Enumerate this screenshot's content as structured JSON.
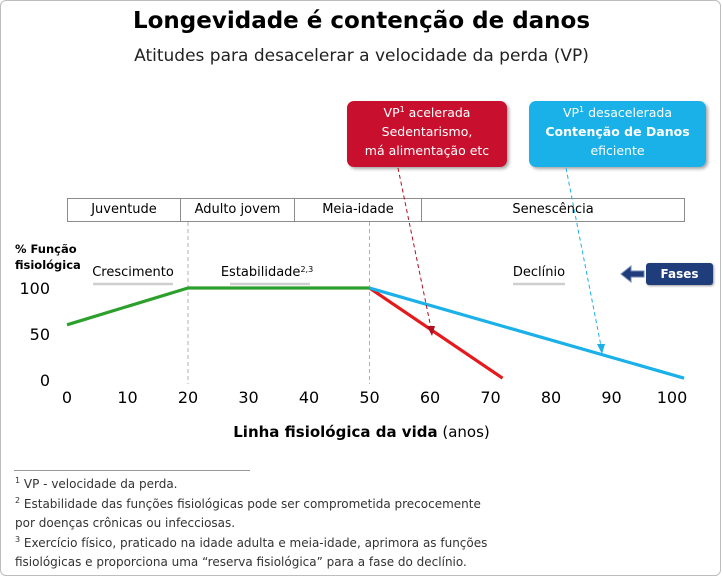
{
  "title": "Longevidade é contenção de danos",
  "subtitle": "Atitudes para desacelerar a velocidade da perda (VP)",
  "callout_red": {
    "line1_prefix": "VP",
    "line1_sup": "1",
    "line1_suffix": " acelerada",
    "line2": "Sedentarismo,",
    "line3": "má alimentação etc",
    "color": "#c8102e"
  },
  "callout_blue": {
    "line1_prefix": "VP",
    "line1_sup": "1",
    "line1_suffix": " desacelerada",
    "line2": "Contenção de Danos",
    "line3": "eficiente",
    "color": "#1ab0e8"
  },
  "phases": [
    "Juventude",
    "Adulto jovem",
    "Meia-idade",
    "Senescência"
  ],
  "fases_label": "Fases",
  "y_axis_label_1": "% Função",
  "y_axis_label_2": "fisiológica",
  "stage_labels": {
    "growth": "Crescimento",
    "stability": "Estabilidade",
    "stability_sup": "2,3",
    "decline": "Declínio"
  },
  "x_axis_label_bold": "Linha fisiológica da vida",
  "x_axis_label_rest": " (anos)",
  "notes": [
    {
      "sup": "1",
      "text": " VP - velocidade da perda."
    },
    {
      "sup": "2",
      "text": " Estabilidade das funções fisiológicas pode ser comprometida precocemente"
    },
    {
      "sup": "",
      "text": "por doenças crônicas ou infecciosas."
    },
    {
      "sup": "3",
      "text": " Exercício físico, praticado na idade adulta e meia-idade, aprimora as funções"
    },
    {
      "sup": "",
      "text": "fisiológicas e proporciona uma “reserva fisiológica” para a fase do declínio."
    }
  ],
  "chart_data": {
    "type": "line",
    "x_ticks": [
      0,
      10,
      20,
      30,
      40,
      50,
      60,
      70,
      80,
      90,
      100
    ],
    "y_ticks": [
      0,
      50,
      100
    ],
    "xlim": [
      0,
      102
    ],
    "ylim": [
      0,
      100
    ],
    "series": [
      {
        "color": "#2ca02c",
        "x": [
          0,
          20,
          50
        ],
        "y": [
          60,
          100,
          100
        ]
      },
      {
        "color": "#e41a1c",
        "x": [
          50,
          72
        ],
        "y": [
          100,
          2
        ]
      },
      {
        "color": "#1ab0e8",
        "x": [
          50,
          102
        ],
        "y": [
          100,
          2
        ]
      }
    ],
    "phase_boundaries": [
      20,
      50
    ]
  }
}
